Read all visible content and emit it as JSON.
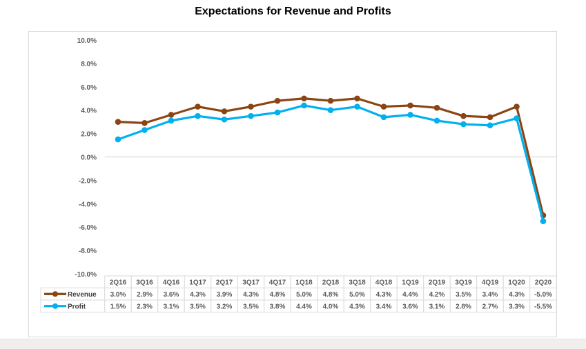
{
  "chart_data": {
    "type": "line",
    "title": "Expectations for Revenue and Profits",
    "xlabel": "",
    "ylabel": "",
    "ylim": [
      -10.0,
      10.0
    ],
    "y_ticks": [
      "10.0%",
      "8.0%",
      "6.0%",
      "4.0%",
      "2.0%",
      "0.0%",
      "-2.0%",
      "-4.0%",
      "-6.0%",
      "-8.0%",
      "-10.0%"
    ],
    "y_tick_values": [
      10,
      8,
      6,
      4,
      2,
      0,
      -2,
      -4,
      -6,
      -8,
      -10
    ],
    "grid": "zero-line only",
    "legend": "data-table",
    "categories": [
      "2Q16",
      "3Q16",
      "4Q16",
      "1Q17",
      "2Q17",
      "3Q17",
      "4Q17",
      "1Q18",
      "2Q18",
      "3Q18",
      "4Q18",
      "1Q19",
      "2Q19",
      "3Q19",
      "4Q19",
      "1Q20",
      "2Q20"
    ],
    "series": [
      {
        "name": "Revenue",
        "color": "#8b4513",
        "values": [
          3.0,
          2.9,
          3.6,
          4.3,
          3.9,
          4.3,
          4.8,
          5.0,
          4.8,
          5.0,
          4.3,
          4.4,
          4.2,
          3.5,
          3.4,
          4.3,
          -5.0
        ],
        "labels": [
          "3.0%",
          "2.9%",
          "3.6%",
          "4.3%",
          "3.9%",
          "4.3%",
          "4.8%",
          "5.0%",
          "4.8%",
          "5.0%",
          "4.3%",
          "4.4%",
          "4.2%",
          "3.5%",
          "3.4%",
          "4.3%",
          "-5.0%"
        ]
      },
      {
        "name": "Profit",
        "color": "#00b0f0",
        "values": [
          1.5,
          2.3,
          3.1,
          3.5,
          3.2,
          3.5,
          3.8,
          4.4,
          4.0,
          4.3,
          3.4,
          3.6,
          3.1,
          2.8,
          2.7,
          3.3,
          -5.5
        ],
        "labels": [
          "1.5%",
          "2.3%",
          "3.1%",
          "3.5%",
          "3.2%",
          "3.5%",
          "3.8%",
          "4.4%",
          "4.0%",
          "4.3%",
          "3.4%",
          "3.6%",
          "3.1%",
          "2.8%",
          "2.7%",
          "3.3%",
          "-5.5%"
        ]
      }
    ]
  }
}
